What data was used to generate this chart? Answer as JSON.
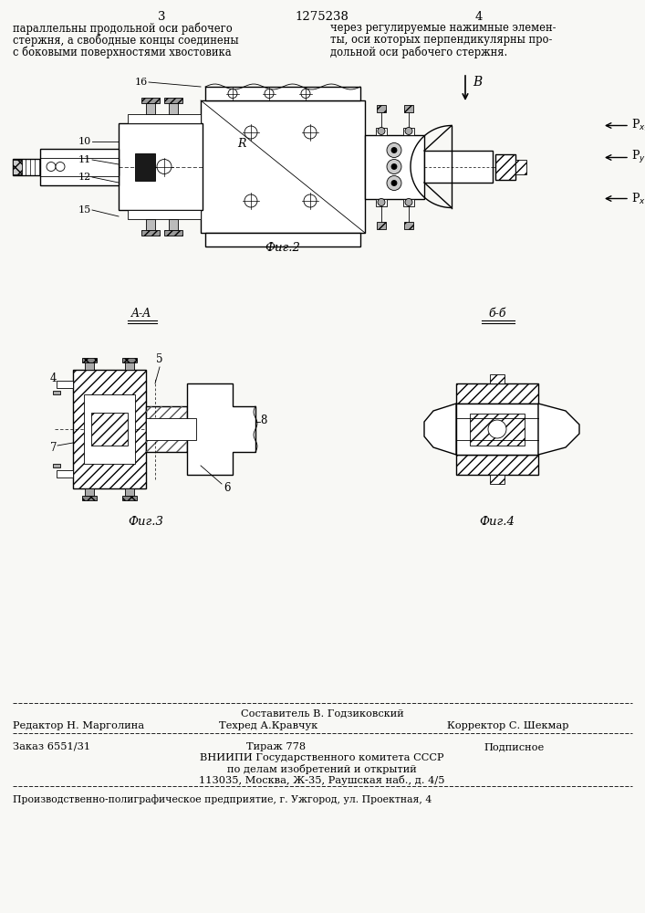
{
  "background_color": "#f8f8f5",
  "page_number_left": "3",
  "page_number_center": "1275238",
  "page_number_right": "4",
  "text_left_col": [
    "параллельны продольной оси рабочего",
    "стержня, а свободные концы соединены",
    "с боковыми поверхностями хвостовика"
  ],
  "text_right_col": [
    "через регулируемые нажимные элемен-",
    "ты, оси которых перпендикулярны про-",
    "дольной оси рабочего стержня."
  ],
  "fig2_label": "Фиг.2",
  "fig3_label": "Фиг.3",
  "fig4_label": "Фиг.4",
  "footer_line1_center": "Составитель В. Годзиковский",
  "footer_line2_left": "Редактор Н. Марголина",
  "footer_line2_center": "Техред А.Кравчук",
  "footer_line2_right": "Корректор С. Шекмар",
  "footer_order": "Заказ 6551/31",
  "footer_tirazh": "Тираж 778",
  "footer_podpisnoe": "Подписное",
  "footer_vniip1": "ВНИИПИ Государственного комитета СССР",
  "footer_vniip2": "по делам изобретений и открытий",
  "footer_vniip3": "113035, Москва, Ж-35, Раушская наб., д. 4/5",
  "footer_last": "Производственно-полиграфическое предприятие, г. Ужгород, ул. Проектная, 4"
}
